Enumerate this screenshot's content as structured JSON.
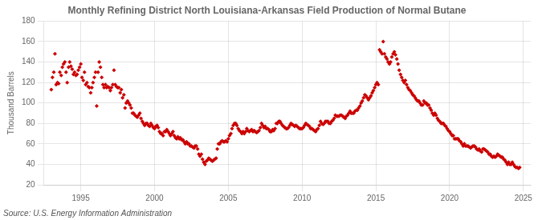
{
  "chart_data": {
    "type": "scatter",
    "title": "Monthly Refining District North Louisiana-Arkansas Field Production of Normal Butane",
    "ylabel": "Thousand Barrels",
    "annotation": "Source: U.S. Energy Information Administration",
    "color": "#cc0000",
    "marker": "diamond",
    "grid": true,
    "xlim": [
      1992.5,
      2025.5
    ],
    "xticks": [
      1995,
      2000,
      2005,
      2010,
      2015,
      2020,
      2025
    ],
    "ylim": [
      20,
      180
    ],
    "yticks": [
      20,
      40,
      60,
      80,
      100,
      120,
      140,
      160,
      180
    ],
    "x": [
      1993.0,
      1993.08,
      1993.17,
      1993.25,
      1993.33,
      1993.42,
      1993.5,
      1993.58,
      1993.67,
      1993.75,
      1993.83,
      1993.92,
      1994.0,
      1994.08,
      1994.17,
      1994.25,
      1994.33,
      1994.42,
      1994.5,
      1994.58,
      1994.67,
      1994.75,
      1994.83,
      1994.92,
      1995.0,
      1995.08,
      1995.17,
      1995.25,
      1995.33,
      1995.42,
      1995.5,
      1995.58,
      1995.67,
      1995.75,
      1995.83,
      1995.92,
      1996.0,
      1996.08,
      1996.17,
      1996.25,
      1996.33,
      1996.42,
      1996.5,
      1996.58,
      1996.67,
      1996.75,
      1996.83,
      1996.92,
      1997.0,
      1997.08,
      1997.17,
      1997.25,
      1997.33,
      1997.42,
      1997.5,
      1997.58,
      1997.67,
      1997.75,
      1997.83,
      1997.92,
      1998.0,
      1998.08,
      1998.17,
      1998.25,
      1998.33,
      1998.42,
      1998.5,
      1998.58,
      1998.67,
      1998.75,
      1998.83,
      1998.92,
      1999.0,
      1999.08,
      1999.17,
      1999.25,
      1999.33,
      1999.42,
      1999.5,
      1999.58,
      1999.67,
      1999.75,
      1999.83,
      1999.92,
      2000.0,
      2000.08,
      2000.17,
      2000.25,
      2000.33,
      2000.42,
      2000.5,
      2000.58,
      2000.67,
      2000.75,
      2000.83,
      2000.92,
      2001.0,
      2001.08,
      2001.17,
      2001.25,
      2001.33,
      2001.42,
      2001.5,
      2001.58,
      2001.67,
      2001.75,
      2001.83,
      2001.92,
      2002.0,
      2002.08,
      2002.17,
      2002.25,
      2002.33,
      2002.42,
      2002.5,
      2002.58,
      2002.67,
      2002.75,
      2002.83,
      2002.92,
      2003.0,
      2003.08,
      2003.17,
      2003.25,
      2003.33,
      2003.42,
      2003.5,
      2003.58,
      2003.67,
      2003.75,
      2003.83,
      2003.92,
      2004.0,
      2004.08,
      2004.17,
      2004.25,
      2004.33,
      2004.42,
      2004.5,
      2004.58,
      2004.67,
      2004.75,
      2004.83,
      2004.92,
      2005.0,
      2005.08,
      2005.17,
      2005.25,
      2005.33,
      2005.42,
      2005.5,
      2005.58,
      2005.67,
      2005.75,
      2005.83,
      2005.92,
      2006.0,
      2006.08,
      2006.17,
      2006.25,
      2006.33,
      2006.42,
      2006.5,
      2006.58,
      2006.67,
      2006.75,
      2006.83,
      2006.92,
      2007.0,
      2007.08,
      2007.17,
      2007.25,
      2007.33,
      2007.42,
      2007.5,
      2007.58,
      2007.67,
      2007.75,
      2007.83,
      2007.92,
      2008.0,
      2008.08,
      2008.17,
      2008.25,
      2008.33,
      2008.42,
      2008.5,
      2008.58,
      2008.67,
      2008.75,
      2008.83,
      2008.92,
      2009.0,
      2009.08,
      2009.17,
      2009.25,
      2009.33,
      2009.42,
      2009.5,
      2009.58,
      2009.67,
      2009.75,
      2009.83,
      2009.92,
      2010.0,
      2010.08,
      2010.17,
      2010.25,
      2010.33,
      2010.42,
      2010.5,
      2010.58,
      2010.67,
      2010.75,
      2010.83,
      2010.92,
      2011.0,
      2011.08,
      2011.17,
      2011.25,
      2011.33,
      2011.42,
      2011.5,
      2011.58,
      2011.67,
      2011.75,
      2011.83,
      2011.92,
      2012.0,
      2012.08,
      2012.17,
      2012.25,
      2012.33,
      2012.42,
      2012.5,
      2012.58,
      2012.67,
      2012.75,
      2012.83,
      2012.92,
      2013.0,
      2013.08,
      2013.17,
      2013.25,
      2013.33,
      2013.42,
      2013.5,
      2013.58,
      2013.67,
      2013.75,
      2013.83,
      2013.92,
      2014.0,
      2014.08,
      2014.17,
      2014.25,
      2014.33,
      2014.42,
      2014.5,
      2014.58,
      2014.67,
      2014.75,
      2014.83,
      2014.92,
      2015.0,
      2015.08,
      2015.17,
      2015.25,
      2015.33,
      2015.42,
      2015.5,
      2015.58,
      2015.67,
      2015.75,
      2015.83,
      2015.92,
      2016.0,
      2016.08,
      2016.17,
      2016.25,
      2016.33,
      2016.42,
      2016.5,
      2016.58,
      2016.67,
      2016.75,
      2016.83,
      2016.92,
      2017.0,
      2017.08,
      2017.17,
      2017.25,
      2017.33,
      2017.42,
      2017.5,
      2017.58,
      2017.67,
      2017.75,
      2017.83,
      2017.92,
      2018.0,
      2018.08,
      2018.17,
      2018.25,
      2018.33,
      2018.42,
      2018.5,
      2018.58,
      2018.67,
      2018.75,
      2018.83,
      2018.92,
      2019.0,
      2019.08,
      2019.17,
      2019.25,
      2019.33,
      2019.42,
      2019.5,
      2019.58,
      2019.67,
      2019.75,
      2019.83,
      2019.92,
      2020.0,
      2020.08,
      2020.17,
      2020.25,
      2020.33,
      2020.42,
      2020.5,
      2020.58,
      2020.67,
      2020.75,
      2020.83,
      2020.92,
      2021.0,
      2021.08,
      2021.17,
      2021.25,
      2021.33,
      2021.42,
      2021.5,
      2021.58,
      2021.67,
      2021.75,
      2021.83,
      2021.92,
      2022.0,
      2022.08,
      2022.17,
      2022.25,
      2022.33,
      2022.42,
      2022.5,
      2022.58,
      2022.67,
      2022.75,
      2022.83,
      2022.92,
      2023.0,
      2023.08,
      2023.17,
      2023.25,
      2023.33,
      2023.42,
      2023.5,
      2023.58,
      2023.67,
      2023.75,
      2023.83,
      2023.92,
      2024.0,
      2024.08,
      2024.17,
      2024.25,
      2024.33,
      2024.42,
      2024.5,
      2024.58,
      2024.67,
      2024.75
    ],
    "values": [
      113,
      125,
      130,
      148,
      118,
      120,
      119,
      130,
      127,
      135,
      138,
      140,
      130,
      120,
      135,
      140,
      136,
      133,
      128,
      130,
      127,
      128,
      132,
      135,
      138,
      125,
      122,
      130,
      118,
      120,
      116,
      115,
      110,
      115,
      120,
      125,
      130,
      97,
      130,
      140,
      135,
      125,
      118,
      115,
      118,
      115,
      116,
      115,
      112,
      115,
      118,
      132,
      118,
      116,
      115,
      115,
      110,
      113,
      105,
      108,
      95,
      100,
      102,
      100,
      98,
      95,
      90,
      90,
      88,
      87,
      86,
      88,
      90,
      85,
      82,
      80,
      78,
      80,
      80,
      78,
      77,
      80,
      78,
      76,
      75,
      77,
      78,
      76,
      72,
      70,
      70,
      68,
      72,
      72,
      74,
      72,
      70,
      68,
      70,
      72,
      68,
      66,
      65,
      67,
      65,
      66,
      64,
      64,
      62,
      60,
      62,
      60,
      60,
      58,
      58,
      57,
      56,
      58,
      58,
      55,
      50,
      48,
      50,
      45,
      42,
      40,
      43,
      44,
      46,
      45,
      44,
      43,
      44,
      45,
      46,
      55,
      60,
      60,
      62,
      63,
      62,
      62,
      63,
      62,
      65,
      68,
      70,
      75,
      78,
      80,
      80,
      78,
      75,
      73,
      72,
      70,
      72,
      70,
      72,
      75,
      73,
      72,
      73,
      74,
      72,
      73,
      72,
      71,
      72,
      73,
      76,
      80,
      78,
      76,
      77,
      75,
      75,
      74,
      72,
      72,
      74,
      73,
      75,
      80,
      80,
      82,
      82,
      80,
      78,
      77,
      76,
      75,
      75,
      76,
      78,
      80,
      79,
      78,
      77,
      78,
      77,
      76,
      75,
      75,
      75,
      76,
      78,
      80,
      79,
      78,
      77,
      75,
      75,
      74,
      73,
      72,
      74,
      75,
      78,
      82,
      80,
      79,
      80,
      82,
      82,
      82,
      80,
      80,
      82,
      83,
      85,
      88,
      87,
      87,
      87,
      88,
      88,
      87,
      86,
      85,
      87,
      88,
      90,
      92,
      90,
      90,
      90,
      92,
      93,
      93,
      95,
      97,
      100,
      102,
      105,
      108,
      107,
      105,
      103,
      105,
      107,
      110,
      112,
      115,
      118,
      120,
      118,
      152,
      150,
      148,
      160,
      148,
      145,
      143,
      140,
      138,
      140,
      145,
      148,
      150,
      147,
      143,
      138,
      132,
      128,
      125,
      122,
      120,
      122,
      118,
      115,
      113,
      112,
      110,
      108,
      107,
      105,
      103,
      102,
      102,
      100,
      98,
      98,
      102,
      100,
      100,
      98,
      98,
      95,
      93,
      90,
      88,
      90,
      88,
      85,
      83,
      82,
      80,
      80,
      80,
      78,
      77,
      75,
      73,
      72,
      70,
      68,
      68,
      65,
      65,
      65,
      65,
      63,
      62,
      60,
      58,
      60,
      58,
      58,
      58,
      57,
      56,
      57,
      58,
      58,
      57,
      55,
      54,
      55,
      53,
      52,
      55,
      55,
      54,
      53,
      52,
      50,
      50,
      48,
      47,
      48,
      47,
      48,
      50,
      49,
      48,
      47,
      47,
      45,
      44,
      42,
      40,
      42,
      40,
      40,
      42,
      40,
      38,
      37,
      37,
      36,
      37
    ]
  }
}
